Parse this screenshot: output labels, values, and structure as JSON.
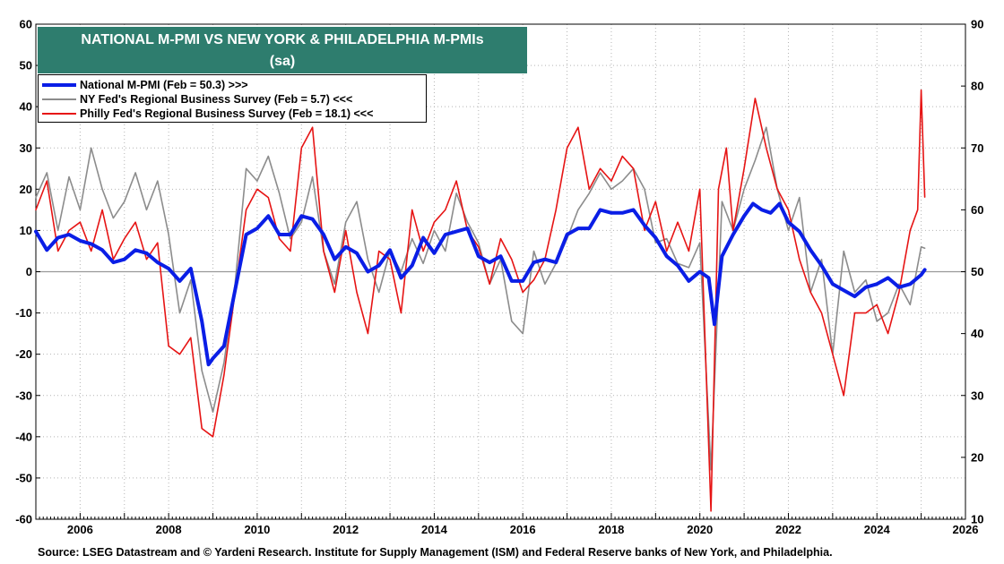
{
  "title": "NATIONAL M-PMI VS NEW YORK & PHILADELPHIA M-PMIs",
  "subtitle": "(sa)",
  "source": "Source: LSEG Datastream and © Yardeni Research. Institute for Supply Management (ISM) and Federal Reserve banks of New York, and Philadelphia.",
  "colors": {
    "national": "#0a1ee6",
    "ny": "#8c8c8c",
    "philly": "#e61414",
    "title_bg": "#2e7d6e",
    "grid": "#b4b4b4"
  },
  "chart_data": {
    "type": "line",
    "title": "NATIONAL M-PMI VS NEW YORK & PHILADELPHIA M-PMIs",
    "subtitle": "(sa)",
    "x_range": [
      2005.0,
      2026.0
    ],
    "x_ticks": [
      "2006",
      "2008",
      "2010",
      "2012",
      "2014",
      "2016",
      "2018",
      "2020",
      "2022",
      "2024",
      "2026"
    ],
    "y_left_range": [
      -60,
      60
    ],
    "y_left_ticks": [
      "-60",
      "-50",
      "-40",
      "-30",
      "-20",
      "-10",
      "0",
      "10",
      "20",
      "30",
      "40",
      "50",
      "60"
    ],
    "y_right_range": [
      10,
      90
    ],
    "y_right_ticks": [
      "10",
      "20",
      "30",
      "40",
      "50",
      "60",
      "70",
      "80",
      "90"
    ],
    "grid": "dotted",
    "legend_position": "top-left",
    "series": [
      {
        "name": "National M-PMI (Feb = 50.3) >>>",
        "axis": "right",
        "x": [
          2005.0,
          2005.25,
          2005.5,
          2005.75,
          2006.0,
          2006.25,
          2006.5,
          2006.75,
          2007.0,
          2007.25,
          2007.5,
          2007.75,
          2008.0,
          2008.25,
          2008.5,
          2008.75,
          2008.9,
          2009.0,
          2009.25,
          2009.5,
          2009.75,
          2010.0,
          2010.25,
          2010.5,
          2010.75,
          2011.0,
          2011.25,
          2011.5,
          2011.75,
          2012.0,
          2012.25,
          2012.5,
          2012.75,
          2013.0,
          2013.25,
          2013.5,
          2013.75,
          2014.0,
          2014.25,
          2014.5,
          2014.75,
          2015.0,
          2015.25,
          2015.5,
          2015.75,
          2016.0,
          2016.25,
          2016.5,
          2016.75,
          2017.0,
          2017.25,
          2017.5,
          2017.75,
          2018.0,
          2018.25,
          2018.5,
          2018.75,
          2019.0,
          2019.25,
          2019.5,
          2019.75,
          2020.0,
          2020.2,
          2020.33,
          2020.5,
          2020.75,
          2021.0,
          2021.2,
          2021.4,
          2021.6,
          2021.8,
          2022.0,
          2022.25,
          2022.5,
          2022.75,
          2023.0,
          2023.25,
          2023.5,
          2023.75,
          2024.0,
          2024.25,
          2024.5,
          2024.75,
          2025.0,
          2025.08
        ],
        "values": [
          56.5,
          53.5,
          55.5,
          56.0,
          55.0,
          54.5,
          53.5,
          51.5,
          52.0,
          53.5,
          53.0,
          51.5,
          50.5,
          48.5,
          50.5,
          42.0,
          35.0,
          36.0,
          38.0,
          47.0,
          56.0,
          57.0,
          59.0,
          56.0,
          56.0,
          59.0,
          58.5,
          56.0,
          52.0,
          54.0,
          53.0,
          50.0,
          51.0,
          53.5,
          49.0,
          51.0,
          55.5,
          53.0,
          56.0,
          56.5,
          57.0,
          52.5,
          51.5,
          52.5,
          48.5,
          48.5,
          51.5,
          52.0,
          51.5,
          56.0,
          57.0,
          57.0,
          60.0,
          59.5,
          59.5,
          60.0,
          57.5,
          55.5,
          52.5,
          51.0,
          48.5,
          50.0,
          49.0,
          41.5,
          52.5,
          56.0,
          59.0,
          61.0,
          60.0,
          59.5,
          61.0,
          58.0,
          56.5,
          53.5,
          51.0,
          48.0,
          47.0,
          46.0,
          47.5,
          48.0,
          49.0,
          47.5,
          48.0,
          49.5,
          50.3
        ]
      },
      {
        "name": "NY Fed's Regional Business Survey (Feb = 5.7) <<<",
        "axis": "left",
        "x": [
          2005.0,
          2005.25,
          2005.5,
          2005.75,
          2006.0,
          2006.25,
          2006.5,
          2006.75,
          2007.0,
          2007.25,
          2007.5,
          2007.75,
          2008.0,
          2008.25,
          2008.5,
          2008.75,
          2009.0,
          2009.25,
          2009.5,
          2009.75,
          2010.0,
          2010.25,
          2010.5,
          2010.75,
          2011.0,
          2011.25,
          2011.5,
          2011.75,
          2012.0,
          2012.25,
          2012.5,
          2012.75,
          2013.0,
          2013.25,
          2013.5,
          2013.75,
          2014.0,
          2014.25,
          2014.5,
          2014.75,
          2015.0,
          2015.25,
          2015.5,
          2015.75,
          2016.0,
          2016.25,
          2016.5,
          2016.75,
          2017.0,
          2017.25,
          2017.5,
          2017.75,
          2018.0,
          2018.25,
          2018.5,
          2018.75,
          2019.0,
          2019.25,
          2019.5,
          2019.75,
          2020.0,
          2020.25,
          2020.5,
          2020.75,
          2021.0,
          2021.25,
          2021.5,
          2021.75,
          2022.0,
          2022.25,
          2022.5,
          2022.75,
          2023.0,
          2023.25,
          2023.5,
          2023.75,
          2024.0,
          2024.25,
          2024.5,
          2024.75,
          2025.0,
          2025.08
        ],
        "values": [
          18,
          24,
          10,
          23,
          15,
          30,
          20,
          13,
          17,
          24,
          15,
          22,
          9,
          -10,
          -2,
          -24,
          -34,
          -22,
          -3,
          25,
          22,
          28,
          19,
          8,
          12,
          23,
          5,
          -3,
          12,
          17,
          3,
          -5,
          5,
          0,
          8,
          2,
          10,
          5,
          19,
          12,
          7,
          -3,
          3,
          -12,
          -15,
          5,
          -3,
          2,
          8,
          15,
          19,
          24,
          20,
          22,
          25,
          20,
          7,
          8,
          2,
          1,
          7,
          -48,
          17,
          10,
          20,
          27,
          35,
          20,
          10,
          18,
          -5,
          3,
          -20,
          5,
          -5,
          -2,
          -12,
          -10,
          -3,
          -8,
          6,
          5.7
        ]
      },
      {
        "name": "Philly Fed's Regional Business Survey (Feb = 18.1) <<<",
        "axis": "left",
        "x": [
          2005.0,
          2005.25,
          2005.5,
          2005.75,
          2006.0,
          2006.25,
          2006.5,
          2006.75,
          2007.0,
          2007.25,
          2007.5,
          2007.75,
          2008.0,
          2008.25,
          2008.5,
          2008.75,
          2009.0,
          2009.25,
          2009.5,
          2009.75,
          2010.0,
          2010.25,
          2010.5,
          2010.75,
          2011.0,
          2011.25,
          2011.5,
          2011.75,
          2012.0,
          2012.25,
          2012.5,
          2012.75,
          2013.0,
          2013.25,
          2013.5,
          2013.75,
          2014.0,
          2014.25,
          2014.5,
          2014.75,
          2015.0,
          2015.25,
          2015.5,
          2015.75,
          2016.0,
          2016.25,
          2016.5,
          2016.75,
          2017.0,
          2017.25,
          2017.5,
          2017.75,
          2018.0,
          2018.25,
          2018.5,
          2018.75,
          2019.0,
          2019.25,
          2019.5,
          2019.75,
          2020.0,
          2020.25,
          2020.42,
          2020.6,
          2020.75,
          2021.0,
          2021.25,
          2021.5,
          2021.75,
          2022.0,
          2022.25,
          2022.5,
          2022.75,
          2023.0,
          2023.25,
          2023.5,
          2023.75,
          2024.0,
          2024.25,
          2024.5,
          2024.75,
          2024.92,
          2025.0,
          2025.08
        ],
        "values": [
          15,
          22,
          5,
          10,
          12,
          5,
          15,
          3,
          8,
          12,
          3,
          7,
          -18,
          -20,
          -16,
          -38,
          -40,
          -25,
          -5,
          15,
          20,
          18,
          8,
          5,
          30,
          35,
          5,
          -5,
          10,
          -5,
          -15,
          5,
          3,
          -10,
          15,
          5,
          12,
          15,
          22,
          10,
          6,
          -3,
          8,
          3,
          -5,
          -2,
          3,
          15,
          30,
          35,
          20,
          25,
          22,
          28,
          25,
          10,
          17,
          5,
          12,
          5,
          20,
          -58,
          20,
          30,
          10,
          25,
          42,
          30,
          20,
          15,
          3,
          -5,
          -10,
          -20,
          -30,
          -10,
          -10,
          -8,
          -15,
          -5,
          10,
          15,
          44,
          18.1
        ]
      }
    ]
  }
}
